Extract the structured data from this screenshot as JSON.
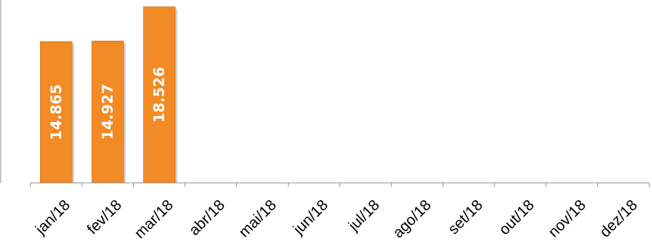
{
  "chart_data": {
    "type": "bar",
    "categories": [
      "jan/18",
      "fev/18",
      "mar/18",
      "abr/18",
      "mai/18",
      "jun/18",
      "jul/18",
      "ago/18",
      "set/18",
      "out/18",
      "nov/18",
      "dez/18"
    ],
    "values": [
      14865,
      14927,
      18526,
      null,
      null,
      null,
      null,
      null,
      null,
      null,
      null,
      null
    ],
    "data_labels": [
      "14.865",
      "14.927",
      "18.526",
      "",
      "",
      "",
      "",
      "",
      "",
      "",
      "",
      ""
    ],
    "title": "",
    "xlabel": "",
    "ylabel": "",
    "ylim": [
      0,
      18800
    ],
    "grid": false,
    "legend": "none",
    "colors": {
      "bar": "#f28a25",
      "bar_border": "#c96a14",
      "axis": "#8a8a8a",
      "label_text": "#ffffff"
    }
  }
}
